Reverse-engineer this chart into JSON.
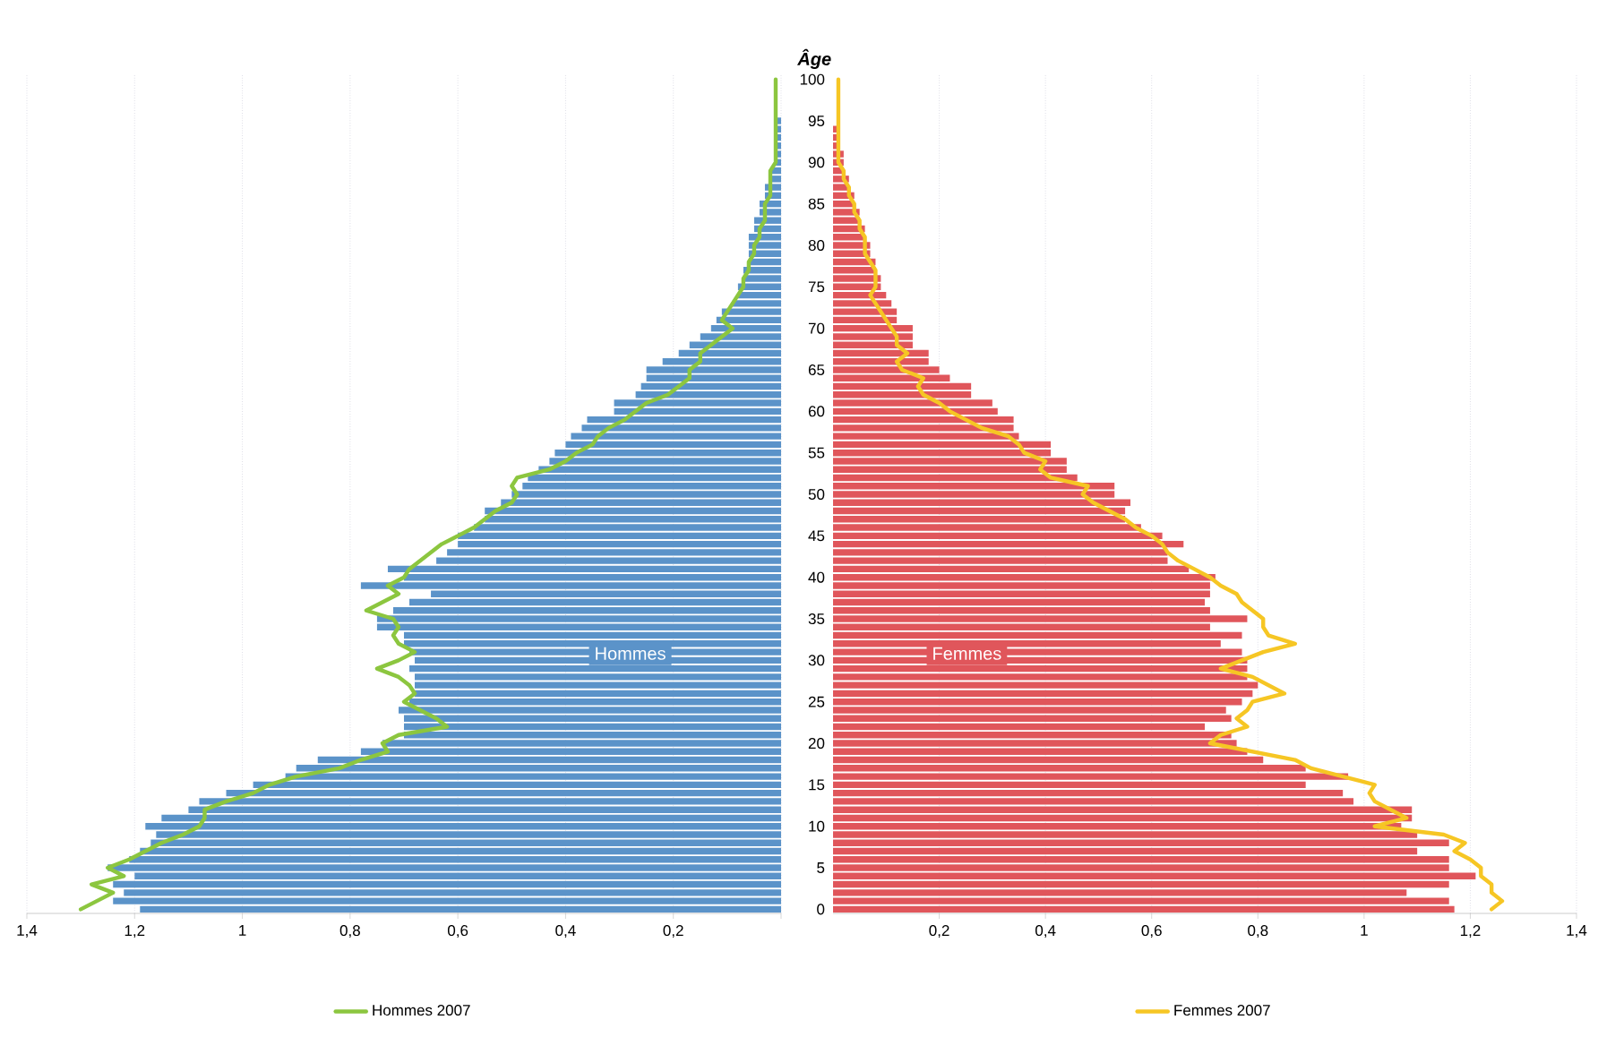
{
  "chart_data": [
    {
      "type": "bar",
      "orientation": "horizontal",
      "categories": [
        "100",
        null,
        null,
        null,
        null,
        "95",
        null,
        null,
        null,
        null,
        "90",
        null,
        null,
        null,
        null,
        "85",
        null,
        null,
        null,
        null,
        "80",
        null,
        null,
        null,
        null,
        "75",
        null,
        null,
        null,
        null,
        "70",
        null,
        null,
        null,
        null,
        "65",
        null,
        null,
        null,
        null,
        "60",
        null,
        null,
        null,
        null,
        "55",
        null,
        null,
        null,
        null,
        "50",
        null,
        null,
        null,
        null,
        "45",
        null,
        null,
        null,
        null,
        "40",
        null,
        null,
        null,
        null,
        "35",
        null,
        null,
        null,
        null,
        "30",
        null,
        null,
        null,
        null,
        "25",
        null,
        null,
        null,
        null,
        "20",
        null,
        null,
        null,
        null,
        "15",
        null,
        null,
        null,
        null,
        "10",
        null,
        null,
        null,
        null,
        "5",
        null,
        null,
        null,
        null,
        "0"
      ],
      "series": [
        {
          "color": "#5b93c9",
          "values": [
            0,
            0,
            0,
            0,
            0,
            0.01,
            0.01,
            0.01,
            0.01,
            0.01,
            0.01,
            0.02,
            0.02,
            0.03,
            0.03,
            0.04,
            0.04,
            0.05,
            0.05,
            0.06,
            0.06,
            0.06,
            0.06,
            0.07,
            0.07,
            0.08,
            0.08,
            0.09,
            0.11,
            0.12,
            0.13,
            0.15,
            0.17,
            0.19,
            0.22,
            0.25,
            0.25,
            0.26,
            0.27,
            0.31,
            0.31,
            0.36,
            0.37,
            0.39,
            0.4,
            0.42,
            0.43,
            0.45,
            0.47,
            0.48,
            0.5,
            0.52,
            0.55,
            0.55,
            0.57,
            0.6,
            0.6,
            0.62,
            0.64,
            0.73,
            0.7,
            0.78,
            0.65,
            0.69,
            0.72,
            0.75,
            0.75,
            0.7,
            0.7,
            0.69,
            0.68,
            0.69,
            0.68,
            0.68,
            0.68,
            0.69,
            0.71,
            0.7,
            0.7,
            0.7,
            0.74,
            0.78,
            0.86,
            0.9,
            0.92,
            0.98,
            1.03,
            1.08,
            1.1,
            1.15,
            1.18,
            1.16,
            1.17,
            1.19,
            1.21,
            1.25,
            1.2,
            1.24,
            1.22,
            1.24,
            1.19
          ]
        },
        {
          "type": "line",
          "name": "Hommes 2007",
          "color": "#8cc63f",
          "values": [
            0.01,
            0.01,
            0.01,
            0.01,
            0.01,
            0.01,
            0.01,
            0.01,
            0.01,
            0.01,
            0.01,
            0.02,
            0.02,
            0.02,
            0.02,
            0.03,
            0.03,
            0.03,
            0.04,
            0.04,
            0.05,
            0.05,
            0.06,
            0.06,
            0.07,
            0.07,
            0.08,
            0.09,
            0.1,
            0.11,
            0.09,
            0.11,
            0.13,
            0.15,
            0.15,
            0.17,
            0.17,
            0.19,
            0.21,
            0.25,
            0.27,
            0.29,
            0.32,
            0.34,
            0.35,
            0.38,
            0.4,
            0.43,
            0.49,
            0.5,
            0.49,
            0.5,
            0.53,
            0.55,
            0.57,
            0.6,
            0.63,
            0.65,
            0.67,
            0.69,
            0.7,
            0.73,
            0.71,
            0.74,
            0.77,
            0.72,
            0.71,
            0.72,
            0.71,
            0.68,
            0.71,
            0.75,
            0.71,
            0.69,
            0.68,
            0.7,
            0.67,
            0.64,
            0.62,
            0.71,
            0.74,
            0.73,
            0.78,
            0.82,
            0.9,
            0.95,
            0.98,
            1.03,
            1.07,
            1.07,
            1.08,
            1.11,
            1.15,
            1.18,
            1.21,
            1.25,
            1.22,
            1.28,
            1.24,
            1.27,
            1.3
          ]
        }
      ],
      "xlim": [
        1.4,
        0
      ],
      "xticks": [
        {
          "value": 1.4,
          "label": "1,4"
        },
        {
          "value": 1.2,
          "label": "1,2"
        },
        1,
        {
          "value": 0.8,
          "label": "0,8"
        },
        {
          "value": 0.6,
          "label": "0,6"
        },
        {
          "value": 0.4,
          "label": "0,4"
        },
        {
          "value": 0.2,
          "label": "0,2"
        },
        {
          "value": 0,
          "label": null
        }
      ],
      "grid": "x",
      "legend": "bottom",
      "tick_labels": "x",
      "annotations": [
        "Hommes"
      ]
    },
    {
      "type": "bar",
      "orientation": "horizontal",
      "categories": [
        "100",
        null,
        null,
        null,
        null,
        "95",
        null,
        null,
        null,
        null,
        "90",
        null,
        null,
        null,
        null,
        "85",
        null,
        null,
        null,
        null,
        "80",
        null,
        null,
        null,
        null,
        "75",
        null,
        null,
        null,
        null,
        "70",
        null,
        null,
        null,
        null,
        "65",
        null,
        null,
        null,
        null,
        "60",
        null,
        null,
        null,
        null,
        "55",
        null,
        null,
        null,
        null,
        "50",
        null,
        null,
        null,
        null,
        "45",
        null,
        null,
        null,
        null,
        "40",
        null,
        null,
        null,
        null,
        "35",
        null,
        null,
        null,
        null,
        "30",
        null,
        null,
        null,
        null,
        "25",
        null,
        null,
        null,
        null,
        "20",
        null,
        null,
        null,
        null,
        "15",
        null,
        null,
        null,
        null,
        "10",
        null,
        null,
        null,
        null,
        "5",
        null,
        null,
        null,
        null,
        "0"
      ],
      "ylabel": "Âge",
      "series": [
        {
          "color": "#e0565b",
          "values": [
            0,
            0,
            0,
            0,
            0,
            0,
            0.01,
            0.01,
            0.01,
            0.02,
            0.02,
            0.02,
            0.03,
            0.03,
            0.04,
            0.04,
            0.05,
            0.05,
            0.06,
            0.06,
            0.07,
            0.07,
            0.08,
            0.08,
            0.09,
            0.09,
            0.1,
            0.11,
            0.12,
            0.12,
            0.15,
            0.15,
            0.15,
            0.18,
            0.18,
            0.2,
            0.22,
            0.26,
            0.26,
            0.3,
            0.31,
            0.34,
            0.34,
            0.35,
            0.41,
            0.41,
            0.44,
            0.44,
            0.46,
            0.53,
            0.53,
            0.56,
            0.55,
            0.55,
            0.58,
            0.62,
            0.66,
            0.63,
            0.63,
            0.67,
            0.72,
            0.71,
            0.71,
            0.7,
            0.71,
            0.78,
            0.71,
            0.77,
            0.73,
            0.77,
            0.78,
            0.78,
            0.78,
            0.8,
            0.79,
            0.77,
            0.74,
            0.75,
            0.7,
            0.75,
            0.76,
            0.78,
            0.81,
            0.89,
            0.97,
            0.89,
            0.96,
            0.98,
            1.09,
            1.09,
            1.07,
            1.1,
            1.16,
            1.1,
            1.16,
            1.16,
            1.21,
            1.16,
            1.08,
            1.16,
            1.17
          ]
        },
        {
          "type": "line",
          "name": "Femmes 2007",
          "color": "#f6c624",
          "values": [
            0.01,
            0.01,
            0.01,
            0.01,
            0.01,
            0.01,
            0.01,
            0.01,
            0.01,
            0.01,
            0.01,
            0.02,
            0.02,
            0.03,
            0.03,
            0.04,
            0.04,
            0.05,
            0.05,
            0.06,
            0.06,
            0.06,
            0.07,
            0.08,
            0.08,
            0.08,
            0.07,
            0.08,
            0.09,
            0.1,
            0.11,
            0.12,
            0.12,
            0.14,
            0.12,
            0.13,
            0.17,
            0.16,
            0.17,
            0.2,
            0.22,
            0.25,
            0.28,
            0.33,
            0.35,
            0.36,
            0.4,
            0.39,
            0.41,
            0.48,
            0.47,
            0.49,
            0.52,
            0.55,
            0.57,
            0.6,
            0.62,
            0.63,
            0.65,
            0.68,
            0.71,
            0.73,
            0.76,
            0.77,
            0.79,
            0.81,
            0.81,
            0.82,
            0.87,
            0.81,
            0.77,
            0.73,
            0.79,
            0.82,
            0.85,
            0.79,
            0.78,
            0.76,
            0.78,
            0.73,
            0.71,
            0.79,
            0.87,
            0.9,
            0.96,
            1.02,
            1.01,
            1.02,
            1.05,
            1.08,
            1.02,
            1.15,
            1.19,
            1.17,
            1.2,
            1.22,
            1.22,
            1.24,
            1.24,
            1.26,
            1.24
          ]
        }
      ],
      "xlim": [
        0,
        1.4
      ],
      "xticks": [
        {
          "value": 0.2,
          "label": "0,2"
        },
        {
          "value": 0.4,
          "label": "0,4"
        },
        {
          "value": 0.6,
          "label": "0,6"
        },
        {
          "value": 0.8,
          "label": "0,8"
        },
        1,
        {
          "value": 1.2,
          "label": "1,2"
        },
        {
          "value": 1.4,
          "label": "1,4"
        }
      ],
      "grid": "x",
      "legend": "bottom",
      "annotations": [
        "Femmes"
      ]
    }
  ]
}
